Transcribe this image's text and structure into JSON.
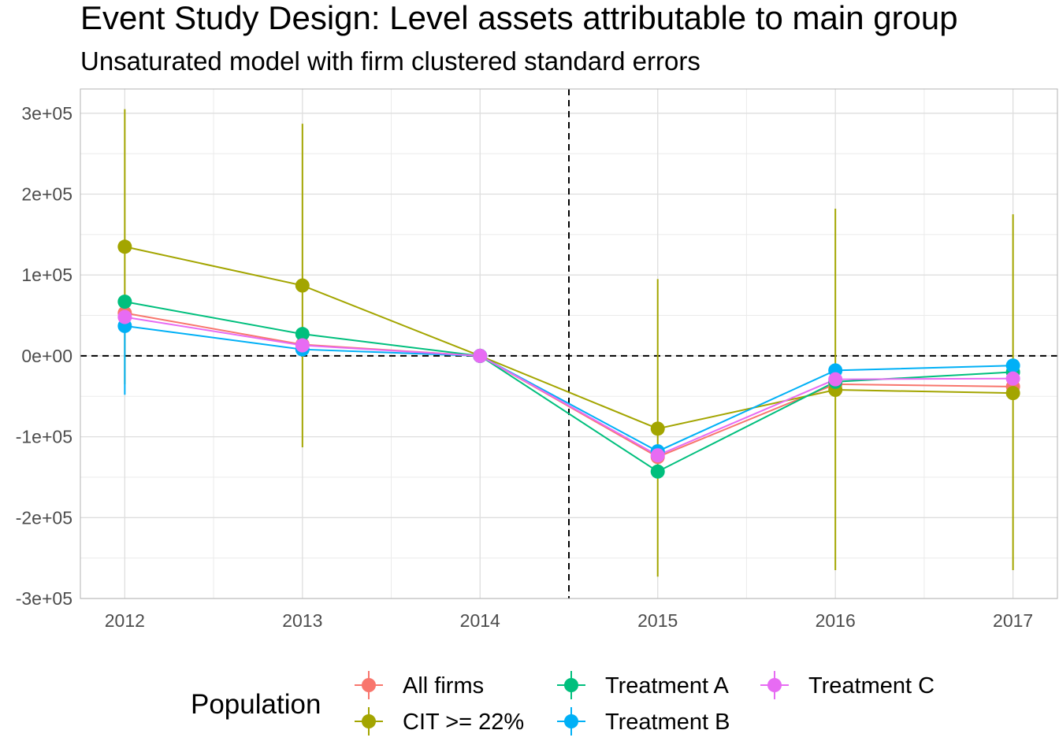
{
  "chart_data": {
    "type": "line",
    "title": "Event Study Design: Level assets attributable to main group",
    "subtitle": "Unsaturated model with firm clustered standard errors",
    "xlabel": "",
    "ylabel": "",
    "x": [
      2012,
      2013,
      2014,
      2015,
      2016,
      2017
    ],
    "x_tick_labels": [
      "2012",
      "2013",
      "2014",
      "2015",
      "2016",
      "2017"
    ],
    "xlim": [
      2011.75,
      2017.25
    ],
    "ylim": [
      -300000,
      330000
    ],
    "y_ticks": [
      300000,
      200000,
      100000,
      0,
      -100000,
      -200000,
      -300000
    ],
    "y_tick_labels": [
      "3e+05",
      "2e+05",
      "1e+05",
      "0e+00",
      "-1e+05",
      "-2e+05",
      "-3e+05"
    ],
    "reference_lines": {
      "vertical_x": 2014.5,
      "horizontal_y": 0,
      "style": "dashed"
    },
    "grid": true,
    "legend": {
      "title": "Population",
      "placement": "bottom"
    },
    "series": [
      {
        "name": "All firms",
        "color": "#F8766D",
        "values": [
          53000,
          14000,
          0,
          -125000,
          -35000,
          -38000
        ],
        "lower": [
          null,
          null,
          null,
          null,
          null,
          null
        ],
        "upper": [
          null,
          null,
          null,
          null,
          null,
          null
        ]
      },
      {
        "name": "CIT >= 22%",
        "color": "#A3A500",
        "values": [
          135000,
          87000,
          0,
          -90000,
          -42000,
          -46000
        ],
        "lower": [
          -35000,
          -113000,
          null,
          -273000,
          -265000,
          -265000
        ],
        "upper": [
          305000,
          287000,
          null,
          95000,
          182000,
          175000
        ]
      },
      {
        "name": "Treatment A",
        "color": "#00BF7D",
        "values": [
          67000,
          27000,
          0,
          -143000,
          -32000,
          -20000
        ],
        "lower": [
          null,
          null,
          null,
          null,
          null,
          null
        ],
        "upper": [
          null,
          null,
          null,
          null,
          null,
          null
        ]
      },
      {
        "name": "Treatment B",
        "color": "#00B0F6",
        "values": [
          37000,
          8000,
          0,
          -118000,
          -18000,
          -12000
        ],
        "lower": [
          -48000,
          null,
          null,
          null,
          null,
          null
        ],
        "upper": [
          null,
          null,
          null,
          null,
          null,
          null
        ]
      },
      {
        "name": "Treatment C",
        "color": "#E76BF3",
        "values": [
          48000,
          13000,
          0,
          -123000,
          -29000,
          -28000
        ],
        "lower": [
          null,
          null,
          null,
          null,
          null,
          null
        ],
        "upper": [
          null,
          null,
          null,
          null,
          null,
          null
        ]
      }
    ]
  }
}
